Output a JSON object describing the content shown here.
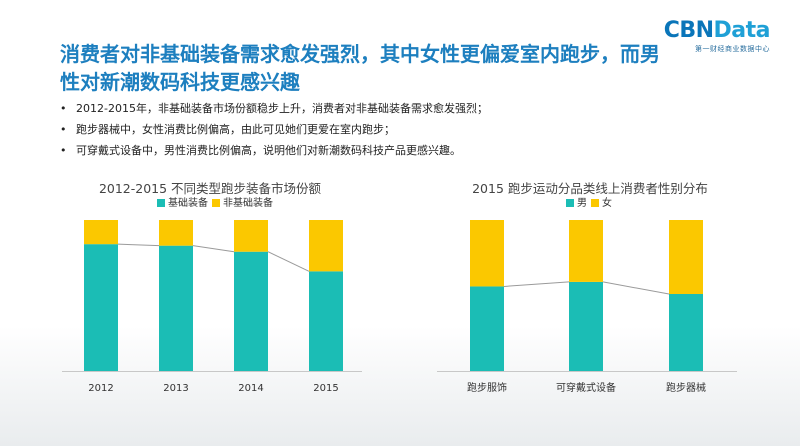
{
  "logo": {
    "main_part1": "CBN",
    "main_part2": "Data",
    "sub": "第一财经商业数据中心"
  },
  "title": "消费者对非基础装备需求愈发强烈，其中女性更偏爱室内跑步，而男性对新潮数码科技更感兴趣",
  "bullets": [
    "2012-2015年，非基础装备市场份额稳步上升，消费者对非基础装备需求愈发强烈；",
    "跑步器械中，女性消费比例偏高，由此可见她们更爱在室内跑步；",
    "可穿戴式设备中，男性消费比例偏高，说明他们对新潮数码科技产品更感兴趣。"
  ],
  "colors": {
    "teal": "#1bbdb5",
    "yellow": "#fbc800",
    "connector": "#9a9a9a"
  },
  "chart_data": [
    {
      "type": "bar",
      "stacked": true,
      "title": "2012-2015 不同类型跑步装备市场份额",
      "categories": [
        "2012",
        "2013",
        "2014",
        "2015"
      ],
      "series": [
        {
          "name": "基础装备",
          "values": [
            0.84,
            0.83,
            0.79,
            0.66
          ]
        },
        {
          "name": "非基础装备",
          "values": [
            0.16,
            0.17,
            0.21,
            0.34
          ]
        }
      ],
      "ylim": [
        0,
        1
      ],
      "legend": "top",
      "grid": false
    },
    {
      "type": "bar",
      "stacked": true,
      "title": "2015 跑步运动分品类线上消费者性别分布",
      "categories": [
        "跑步服饰",
        "可穿戴式设备",
        "跑步器械"
      ],
      "series": [
        {
          "name": "男",
          "values": [
            0.56,
            0.59,
            0.51
          ]
        },
        {
          "name": "女",
          "values": [
            0.44,
            0.41,
            0.49
          ]
        }
      ],
      "ylim": [
        0,
        1
      ],
      "legend": "top",
      "grid": false
    }
  ]
}
